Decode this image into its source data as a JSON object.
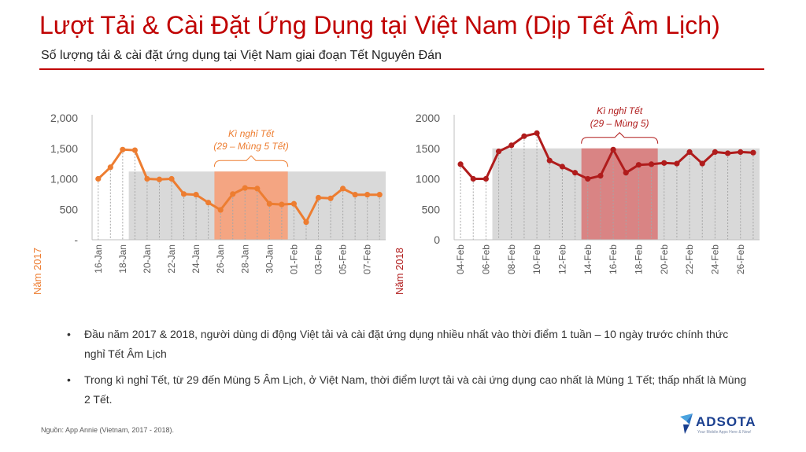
{
  "slide": {
    "title": "Lượt Tải & Cài Đặt Ứng Dụng tại Việt Nam (Dịp Tết Âm Lịch)",
    "subtitle": "Số lượng tải & cài đặt ứng dụng tại Việt Nam giai đoạn Tết Nguyên Đán",
    "source": "Nguồn: App Annie (Vietnam, 2017 - 2018).",
    "logo_text": "ADSOTA",
    "logo_tagline": "Your Mobile Apps Here & Now!",
    "accent_color": "#c00000"
  },
  "notes": [
    "Đầu năm 2017 & 2018, người dùng di động Việt tải và cài đặt ứng dụng nhiều nhất vào thời điểm 1 tuần – 10 ngày trước chính thức nghỉ Tết Âm Lịch",
    "Trong kì nghỉ Tết, từ 29 đến Mùng 5 Âm Lịch, ở Việt Nam, thời điểm lượt tải và cài ứng dụng cao nhất là Mùng 1 Tết; thấp nhất là Mùng 2 Tết."
  ],
  "bullet_symbol": "•",
  "chart_data": [
    {
      "type": "line",
      "ylabel": "Năm 2017",
      "line_color": "#ed7d31",
      "highlight_color": "#f4a582",
      "categories": [
        "16-Jan",
        "17-Jan",
        "18-Jan",
        "19-Jan",
        "20-Jan",
        "21-Jan",
        "22-Jan",
        "23-Jan",
        "24-Jan",
        "25-Jan",
        "26-Jan",
        "27-Jan",
        "28-Jan",
        "29-Jan",
        "30-Jan",
        "31-Jan",
        "01-Feb",
        "02-Feb",
        "03-Feb",
        "04-Feb",
        "05-Feb",
        "06-Feb",
        "07-Feb",
        "08-Feb"
      ],
      "tick_labels": [
        "16-Jan",
        "18-Jan",
        "20-Jan",
        "22-Jan",
        "24-Jan",
        "26-Jan",
        "28-Jan",
        "30-Jan",
        "01-Feb",
        "03-Feb",
        "05-Feb",
        "07-Feb"
      ],
      "values": [
        1000,
        1190,
        1480,
        1470,
        1000,
        990,
        1000,
        750,
        740,
        610,
        490,
        750,
        850,
        840,
        590,
        580,
        590,
        290,
        690,
        680,
        840,
        740,
        740,
        740
      ],
      "yticks": [
        0,
        500,
        1000,
        1500,
        2000
      ],
      "ytick_labels": [
        "-",
        "500",
        "1,000",
        "1,500",
        "2,000"
      ],
      "ylim": [
        0,
        2000
      ],
      "pre_season_start": "19-Jan",
      "grey_band": {
        "from": "19-Jan",
        "to": "08-Feb",
        "value": 1120
      },
      "holiday": {
        "from": "26-Jan",
        "to": "31-Jan",
        "value": 1120
      },
      "annotation": {
        "line1": "Kì nghỉ Tết",
        "line2": "(29 – Mùng 5 Tết)"
      }
    },
    {
      "type": "line",
      "ylabel": "Năm 2018",
      "line_color": "#b01c1c",
      "highlight_color": "#d98484",
      "categories": [
        "04-Feb",
        "05-Feb",
        "06-Feb",
        "07-Feb",
        "08-Feb",
        "09-Feb",
        "10-Feb",
        "11-Feb",
        "12-Feb",
        "13-Feb",
        "14-Feb",
        "15-Feb",
        "16-Feb",
        "17-Feb",
        "18-Feb",
        "19-Feb",
        "20-Feb",
        "21-Feb",
        "22-Feb",
        "23-Feb",
        "24-Feb",
        "25-Feb",
        "26-Feb",
        "27-Feb"
      ],
      "tick_labels": [
        "04-Feb",
        "06-Feb",
        "08-Feb",
        "10-Feb",
        "12-Feb",
        "14-Feb",
        "16-Feb",
        "18-Feb",
        "20-Feb",
        "22-Feb",
        "24-Feb",
        "26-Feb"
      ],
      "values": [
        1240,
        1000,
        1000,
        1450,
        1550,
        1700,
        1750,
        1300,
        1200,
        1100,
        1000,
        1050,
        1480,
        1100,
        1230,
        1240,
        1260,
        1250,
        1440,
        1250,
        1440,
        1420,
        1440,
        1430
      ],
      "yticks": [
        0,
        500,
        1000,
        1500,
        2000
      ],
      "ytick_labels": [
        "0",
        "500",
        "1000",
        "1500",
        "2000"
      ],
      "ylim": [
        0,
        2000
      ],
      "pre_season_start": "07-Feb",
      "grey_band": {
        "from": "07-Feb",
        "to": "27-Feb",
        "value": 1500
      },
      "holiday": {
        "from": "14-Feb",
        "to": "19-Feb",
        "value": 1500
      },
      "annotation": {
        "line1": "Kì nghỉ Tết",
        "line2": "(29 – Mùng 5)"
      }
    }
  ]
}
